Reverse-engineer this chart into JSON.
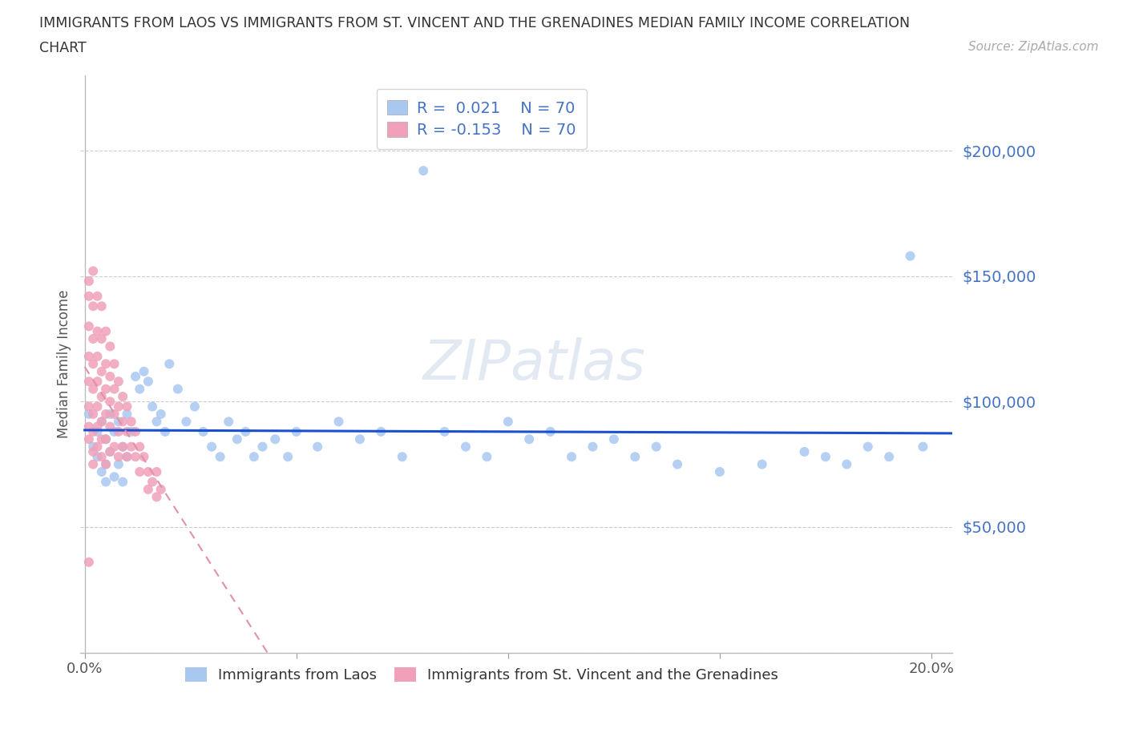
{
  "title_line1": "IMMIGRANTS FROM LAOS VS IMMIGRANTS FROM ST. VINCENT AND THE GRENADINES MEDIAN FAMILY INCOME CORRELATION",
  "title_line2": "CHART",
  "source_text": "Source: ZipAtlas.com",
  "watermark": "ZIPatlas",
  "ylabel": "Median Family Income",
  "R_laos": 0.021,
  "R_svg": -0.153,
  "N_laos": 70,
  "N_svg": 70,
  "color_laos": "#a8c8f0",
  "color_svg": "#f0a0b8",
  "trendline_laos_color": "#1a50d0",
  "trendline_svg_color": "#e090a8",
  "axis_blue": "#4472c4",
  "grid_color": "#cccccc",
  "background_color": "#ffffff",
  "xlim_min": -0.001,
  "xlim_max": 0.205,
  "ylim_min": 0,
  "ylim_max": 230000,
  "yticks": [
    0,
    50000,
    100000,
    150000,
    200000
  ],
  "ytick_labels": [
    "",
    "$50,000",
    "$100,000",
    "$150,000",
    "$200,000"
  ],
  "xtick_positions": [
    0.0,
    0.05,
    0.1,
    0.15,
    0.2
  ],
  "xtick_labels_show": [
    "0.0%",
    "",
    "",
    "",
    "20.0%"
  ],
  "laos_x": [
    0.001,
    0.002,
    0.003,
    0.003,
    0.004,
    0.004,
    0.005,
    0.005,
    0.005,
    0.006,
    0.006,
    0.007,
    0.007,
    0.008,
    0.008,
    0.009,
    0.009,
    0.01,
    0.01,
    0.011,
    0.012,
    0.013,
    0.014,
    0.015,
    0.016,
    0.017,
    0.018,
    0.019,
    0.02,
    0.022,
    0.024,
    0.026,
    0.028,
    0.03,
    0.032,
    0.034,
    0.036,
    0.038,
    0.04,
    0.042,
    0.045,
    0.048,
    0.05,
    0.055,
    0.06,
    0.065,
    0.07,
    0.075,
    0.08,
    0.085,
    0.09,
    0.095,
    0.1,
    0.105,
    0.11,
    0.115,
    0.12,
    0.125,
    0.13,
    0.135,
    0.14,
    0.15,
    0.16,
    0.17,
    0.175,
    0.18,
    0.185,
    0.19,
    0.195,
    0.198
  ],
  "laos_y": [
    95000,
    82000,
    78000,
    88000,
    72000,
    92000,
    68000,
    85000,
    75000,
    95000,
    80000,
    70000,
    88000,
    75000,
    92000,
    68000,
    82000,
    78000,
    95000,
    88000,
    110000,
    105000,
    112000,
    108000,
    98000,
    92000,
    95000,
    88000,
    115000,
    105000,
    92000,
    98000,
    88000,
    82000,
    78000,
    92000,
    85000,
    88000,
    78000,
    82000,
    85000,
    78000,
    88000,
    82000,
    92000,
    85000,
    88000,
    78000,
    192000,
    88000,
    82000,
    78000,
    92000,
    85000,
    88000,
    78000,
    82000,
    85000,
    78000,
    82000,
    75000,
    72000,
    75000,
    80000,
    78000,
    75000,
    82000,
    78000,
    158000,
    82000
  ],
  "svg_x": [
    0.001,
    0.001,
    0.001,
    0.001,
    0.001,
    0.001,
    0.001,
    0.001,
    0.002,
    0.002,
    0.002,
    0.002,
    0.002,
    0.002,
    0.002,
    0.002,
    0.002,
    0.003,
    0.003,
    0.003,
    0.003,
    0.003,
    0.003,
    0.003,
    0.004,
    0.004,
    0.004,
    0.004,
    0.004,
    0.004,
    0.004,
    0.005,
    0.005,
    0.005,
    0.005,
    0.005,
    0.005,
    0.006,
    0.006,
    0.006,
    0.006,
    0.006,
    0.007,
    0.007,
    0.007,
    0.007,
    0.008,
    0.008,
    0.008,
    0.008,
    0.009,
    0.009,
    0.009,
    0.01,
    0.01,
    0.01,
    0.011,
    0.011,
    0.012,
    0.012,
    0.013,
    0.013,
    0.014,
    0.015,
    0.015,
    0.016,
    0.017,
    0.017,
    0.018,
    0.001
  ],
  "svg_y": [
    148000,
    142000,
    130000,
    118000,
    108000,
    98000,
    90000,
    85000,
    152000,
    138000,
    125000,
    115000,
    105000,
    95000,
    88000,
    80000,
    75000,
    142000,
    128000,
    118000,
    108000,
    98000,
    90000,
    82000,
    138000,
    125000,
    112000,
    102000,
    92000,
    85000,
    78000,
    128000,
    115000,
    105000,
    95000,
    85000,
    75000,
    122000,
    110000,
    100000,
    90000,
    80000,
    115000,
    105000,
    95000,
    82000,
    108000,
    98000,
    88000,
    78000,
    102000,
    92000,
    82000,
    98000,
    88000,
    78000,
    92000,
    82000,
    88000,
    78000,
    82000,
    72000,
    78000,
    72000,
    65000,
    68000,
    62000,
    72000,
    65000,
    36000
  ]
}
